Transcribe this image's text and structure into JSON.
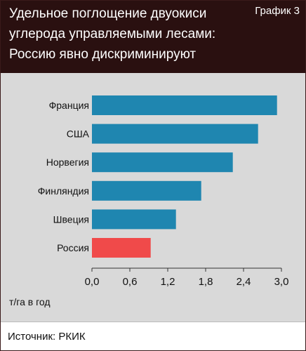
{
  "header": {
    "title_lines": [
      "Удельное поглощение двуокиси",
      "углерода управляемыми лесами:",
      "Россию явно дискриминируют"
    ],
    "badge": "График 3"
  },
  "footer": {
    "source": "Источник: РКИК"
  },
  "colors": {
    "header_bg": "#2a1010",
    "plot_bg": "#d9d9d9",
    "bar": "#1f86b0",
    "highlight": "#f04a4a"
  },
  "chart_data": {
    "type": "bar",
    "orientation": "horizontal",
    "categories": [
      "Франция",
      "США",
      "Норвегия",
      "Финляндия",
      "Швеция",
      "Россия"
    ],
    "values": [
      2.93,
      2.63,
      2.23,
      1.73,
      1.33,
      0.93
    ],
    "highlight": "Россия",
    "xlim": [
      0,
      3.0
    ],
    "xticks": [
      "0,0",
      "0,6",
      "1,2",
      "1,8",
      "2,4",
      "3,0"
    ],
    "xlabel": "т/га в год",
    "grid": false
  }
}
